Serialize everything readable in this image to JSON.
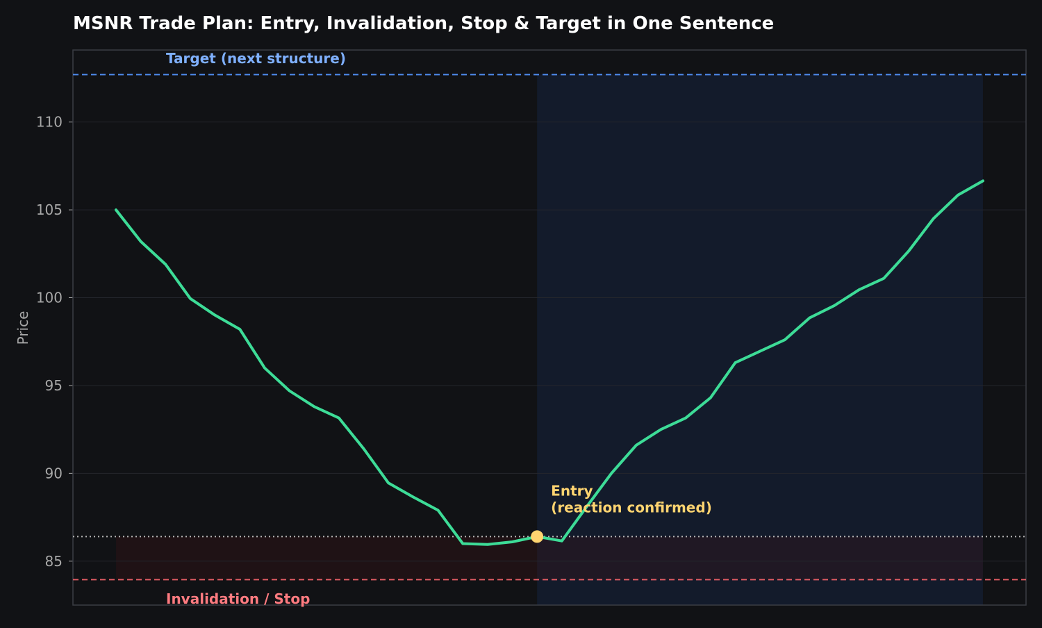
{
  "chart_data": {
    "type": "line",
    "title": "MSNR Trade Plan: Entry, Invalidation, Stop & Target in One Sentence",
    "xlabel": "",
    "ylabel": "Price",
    "ylim": [
      82.5,
      114.1
    ],
    "xlim": [
      -1.74,
      36.74
    ],
    "yticks": [
      85,
      90,
      95,
      100,
      105,
      110
    ],
    "grid": true,
    "legend": "none",
    "series": [
      {
        "x": [
          0,
          1,
          2,
          3,
          4,
          5,
          6,
          7,
          8,
          9,
          10,
          11,
          12,
          13,
          14,
          15,
          16,
          17,
          18,
          19,
          20,
          21,
          22,
          23,
          24,
          25,
          26,
          27,
          28,
          29,
          30,
          31,
          32,
          33,
          34,
          35
        ],
        "values": [
          105.0,
          103.2,
          101.9,
          99.95,
          99.0,
          98.2,
          96.0,
          94.7,
          93.8,
          93.15,
          91.4,
          89.45,
          88.65,
          87.9,
          86.0,
          85.95,
          86.1,
          86.4,
          86.15,
          88.1,
          90.0,
          91.6,
          92.5,
          93.15,
          94.3,
          96.3,
          96.95,
          97.6,
          98.85,
          99.55,
          100.45,
          101.1,
          102.65,
          104.5,
          105.85,
          106.65
        ],
        "color": "#3ddc97"
      }
    ],
    "levels": {
      "target": {
        "value": 112.7,
        "label": "Target (next structure)",
        "color": "#4f8cf0",
        "label_color": "#7fb0ff"
      },
      "stop": {
        "value": 83.95,
        "label": "Invalidation / Stop",
        "color": "#e05c63",
        "label_color": "#ff7b80"
      },
      "entry_level": {
        "value": 86.4,
        "color": "#b8b8b8"
      }
    },
    "entry": {
      "x": 17,
      "y": 86.4,
      "label_line1": "Entry",
      "label_line2": "(reaction confirmed)",
      "color": "#ffd470"
    },
    "zones": {
      "trade_window": {
        "x_start": 17,
        "x_end": 35,
        "color": "#15213a"
      },
      "risk_band": {
        "x_start": 0,
        "x_end": 35,
        "y_low": 83.95,
        "y_high": 86.4,
        "color": "#3a1418"
      }
    },
    "colors": {
      "background": "#111215",
      "axes_edge": "#3a3d44",
      "grid": "#24262c",
      "tick_text": "#a8a8a8",
      "title": "#ffffff"
    }
  }
}
